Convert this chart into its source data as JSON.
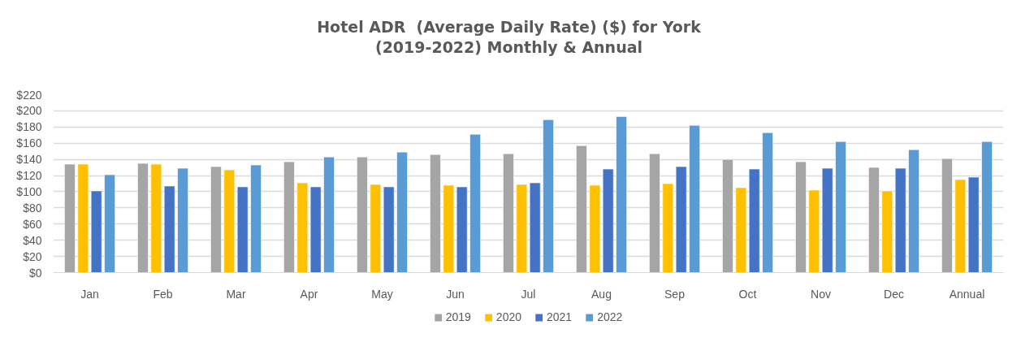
{
  "chart_data": {
    "type": "bar",
    "title": "Hotel ADR  (Average Daily Rate) ($) for York\n(2019-2022) Monthly & Annual",
    "categories": [
      "Jan",
      "Feb",
      "Mar",
      "Apr",
      "May",
      "Jun",
      "Jul",
      "Aug",
      "Sep",
      "Oct",
      "Nov",
      "Dec",
      "Annual"
    ],
    "series": [
      {
        "name": "2019",
        "color": "#a5a5a5",
        "values": [
          134,
          135,
          131,
          137,
          143,
          146,
          147,
          157,
          147,
          140,
          137,
          130,
          141
        ]
      },
      {
        "name": "2020",
        "color": "#ffc000",
        "values": [
          134,
          134,
          127,
          111,
          109,
          108,
          109,
          108,
          110,
          105,
          102,
          101,
          115
        ]
      },
      {
        "name": "2021",
        "color": "#4472c4",
        "values": [
          101,
          107,
          106,
          106,
          106,
          106,
          111,
          128,
          131,
          128,
          129,
          129,
          118
        ]
      },
      {
        "name": "2022",
        "color": "#5b9bd5",
        "values": [
          121,
          129,
          133,
          143,
          149,
          171,
          189,
          193,
          182,
          173,
          162,
          152,
          162
        ]
      }
    ],
    "ylim": [
      0,
      220
    ],
    "yticks": [
      {
        "value": 0,
        "label": "$0"
      },
      {
        "value": 20,
        "label": "$20"
      },
      {
        "value": 40,
        "label": "$40"
      },
      {
        "value": 60,
        "label": "$60"
      },
      {
        "value": 80,
        "label": "$80"
      },
      {
        "value": 100,
        "label": "$100"
      },
      {
        "value": 120,
        "label": "$120"
      },
      {
        "value": 140,
        "label": "$140"
      },
      {
        "value": 160,
        "label": "$160"
      },
      {
        "value": 180,
        "label": "$180"
      },
      {
        "value": 200,
        "label": "$200"
      },
      {
        "value": 220,
        "label": "$220"
      }
    ],
    "grid": "y",
    "legend": "bottom"
  }
}
